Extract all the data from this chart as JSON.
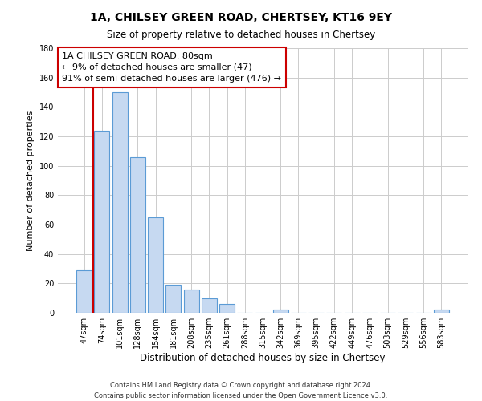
{
  "title": "1A, CHILSEY GREEN ROAD, CHERTSEY, KT16 9EY",
  "subtitle": "Size of property relative to detached houses in Chertsey",
  "xlabel": "Distribution of detached houses by size in Chertsey",
  "ylabel": "Number of detached properties",
  "bar_labels": [
    "47sqm",
    "74sqm",
    "101sqm",
    "128sqm",
    "154sqm",
    "181sqm",
    "208sqm",
    "235sqm",
    "261sqm",
    "288sqm",
    "315sqm",
    "342sqm",
    "369sqm",
    "395sqm",
    "422sqm",
    "449sqm",
    "476sqm",
    "503sqm",
    "529sqm",
    "556sqm",
    "583sqm"
  ],
  "bar_values": [
    29,
    124,
    150,
    106,
    65,
    19,
    16,
    10,
    6,
    0,
    0,
    2,
    0,
    0,
    0,
    0,
    0,
    0,
    0,
    0,
    2
  ],
  "bar_colors": [
    "#c6d9f1",
    "#c6d9f1",
    "#c6d9f1",
    "#c6d9f1",
    "#c6d9f1",
    "#c6d9f1",
    "#c6d9f1",
    "#c6d9f1",
    "#c6d9f1",
    "#c6d9f1",
    "#c6d9f1",
    "#c6d9f1",
    "#c6d9f1",
    "#c6d9f1",
    "#c6d9f1",
    "#c6d9f1",
    "#c6d9f1",
    "#c6d9f1",
    "#c6d9f1",
    "#c6d9f1",
    "#c6d9f1"
  ],
  "annotation_line1": "1A CHILSEY GREEN ROAD: 80sqm",
  "annotation_line2": "← 9% of detached houses are smaller (47)",
  "annotation_line3": "91% of semi-detached houses are larger (476) →",
  "ylim": [
    0,
    180
  ],
  "yticks": [
    0,
    20,
    40,
    60,
    80,
    100,
    120,
    140,
    160,
    180
  ],
  "footer_line1": "Contains HM Land Registry data © Crown copyright and database right 2024.",
  "footer_line2": "Contains public sector information licensed under the Open Government Licence v3.0.",
  "bg_color": "#ffffff",
  "grid_color": "#cccccc",
  "bar_edge_color": "#5b9bd5",
  "property_line_color": "#cc0000",
  "property_line_xindex": 1
}
